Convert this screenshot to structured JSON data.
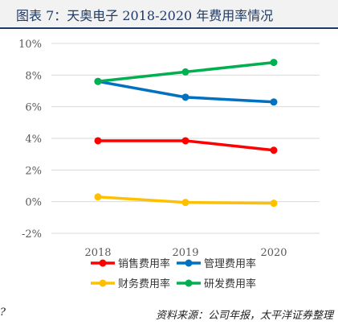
{
  "header": {
    "title": "图表 7：天奥电子 2018-2020 年费用率情况"
  },
  "footer": {
    "source": "资料来源：公司年报，太平洋证券整理",
    "note": "?"
  },
  "chart_data": {
    "type": "line",
    "x": [
      "2018",
      "2019",
      "2020"
    ],
    "y_ticks": [
      "-2%",
      "0%",
      "2%",
      "4%",
      "6%",
      "8%",
      "10%"
    ],
    "ylim": [
      -2,
      10
    ],
    "grid": true,
    "legend_position": "bottom",
    "series": [
      {
        "name": "销售费用率",
        "color": "#ff0000",
        "values": [
          3.85,
          3.85,
          3.25
        ]
      },
      {
        "name": "管理费用率",
        "color": "#0070c0",
        "values": [
          7.6,
          6.6,
          6.3
        ]
      },
      {
        "name": "财务费用率",
        "color": "#ffc000",
        "values": [
          0.3,
          -0.05,
          -0.1
        ]
      },
      {
        "name": "研发费用率",
        "color": "#00b050",
        "values": [
          7.6,
          8.2,
          8.8
        ]
      }
    ]
  }
}
